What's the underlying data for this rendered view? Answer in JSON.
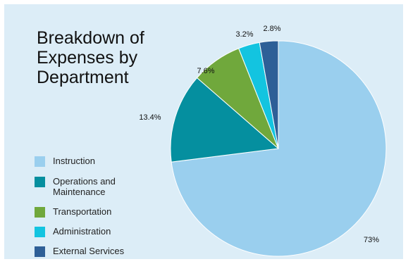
{
  "chart_data": {
    "type": "pie",
    "title": "Breakdown of\nExpenses by\nDepartment",
    "categories": [
      "Instruction",
      "Operations and Maintenance",
      "Transportation",
      "Administration",
      "External Services"
    ],
    "values": [
      73,
      13.4,
      7.6,
      3.2,
      2.8
    ],
    "value_labels": [
      "73%",
      "13.4%",
      "7.6%",
      "3.2%",
      "2.8%"
    ],
    "colors": [
      "#9acfee",
      "#058f9f",
      "#70a83c",
      "#13c4e0",
      "#2e5f97"
    ],
    "legend_placement": "left",
    "legend_labels": [
      "Instruction",
      "Operations and\nMaintenance",
      "Transportation",
      "Administration",
      "External Services"
    ]
  }
}
